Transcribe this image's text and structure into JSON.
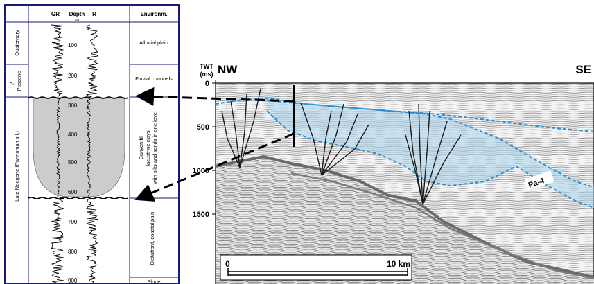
{
  "log_panel": {
    "headers": {
      "gr": "GR",
      "depth": "Depth",
      "depth_unit": "m",
      "r": "R",
      "environment": "Environm."
    },
    "ages": {
      "quaternary": "Quaternary",
      "pliocene": "Pliocene",
      "pliocene_query": "?",
      "late_neogene": "Late Neogene (Pannonian s.l.)"
    },
    "depth_ticks": [
      "100",
      "200",
      "300",
      "400",
      "500",
      "600",
      "700",
      "800",
      "900"
    ],
    "environments": {
      "alluvial": "Alluvial plain",
      "fluvial": "Fluvial channels",
      "canyon_line1": "Canyon fill",
      "canyon_line2": "lacustrine clays,",
      "canyon_line3": "with silts and sands in one level",
      "delta": "Deltafront, coastal pain",
      "slope": "Slope"
    }
  },
  "seismic_panel": {
    "twt_label_line1": "TWT",
    "twt_label_line2": "(ms)",
    "nw_label": "NW",
    "se_label": "SE",
    "twt_ticks": [
      "0",
      "500",
      "1000",
      "1500"
    ],
    "horizon_label": "Pa-4",
    "scale_start": "0",
    "scale_end": "10 km"
  },
  "colors": {
    "log_frame": "#1a1a7a",
    "canyon_fill": "#cccccc",
    "horizon_blue": "#2a8fd0",
    "fill_blue": "#a9d4ee",
    "fault_line": "#1a1a1a",
    "basement_horizon": "#6a6a6a"
  }
}
